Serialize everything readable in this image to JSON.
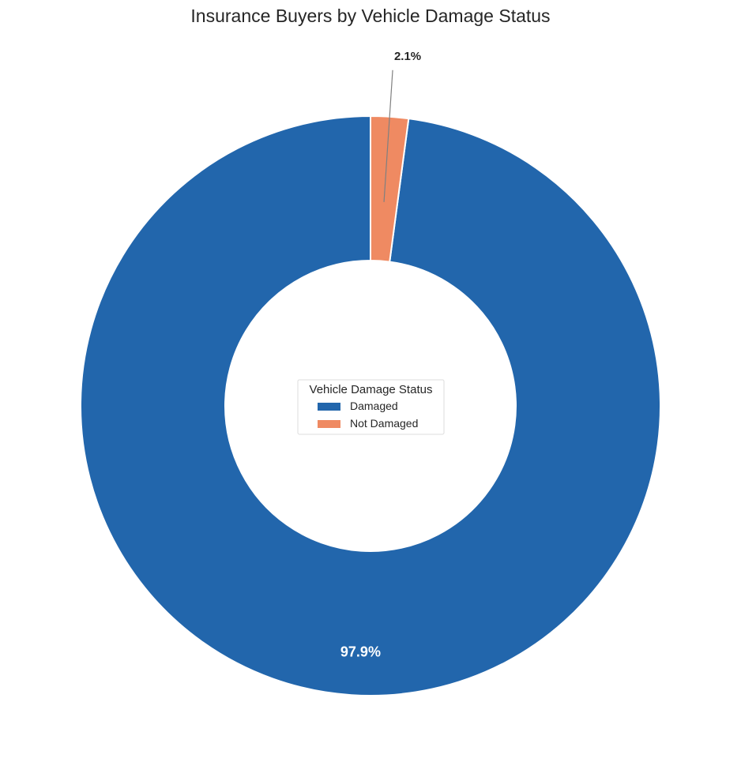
{
  "chart_data": {
    "type": "pie",
    "title": "Insurance Buyers by Vehicle Damage Status",
    "legend_title": "Vehicle Damage Status",
    "legend_placement": "center",
    "donut": true,
    "categories": [
      "Damaged",
      "Not Damaged"
    ],
    "values": [
      97.9,
      2.1
    ],
    "labels": [
      "97.9%",
      "2.1%"
    ],
    "colors": [
      "#2266ac",
      "#ef8a62"
    ],
    "startangle": 90,
    "direction": "counterclockwise"
  }
}
